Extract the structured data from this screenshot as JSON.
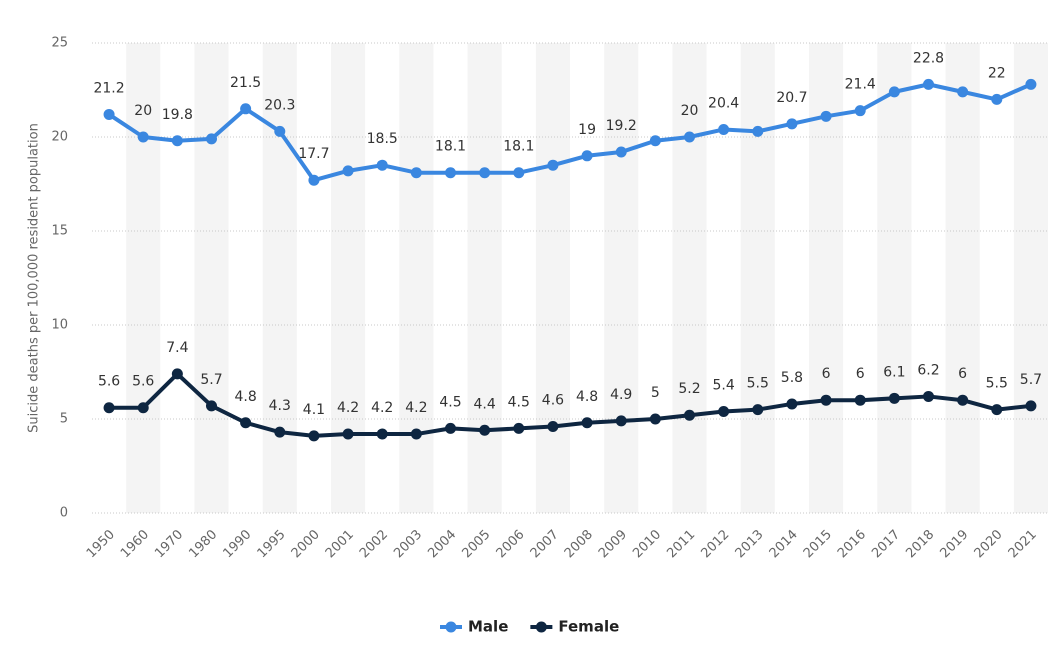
{
  "chart_data": {
    "type": "line",
    "y_label": "Suicide deaths per 100,000 resident population",
    "categories": [
      "1950",
      "1960",
      "1970",
      "1980",
      "1990",
      "1995",
      "2000",
      "2001",
      "2002",
      "2003",
      "2004",
      "2005",
      "2006",
      "2007",
      "2008",
      "2009",
      "2010",
      "2011",
      "2012",
      "2013",
      "2014",
      "2015",
      "2016",
      "2017",
      "2018",
      "2019",
      "2020",
      "2021"
    ],
    "series": [
      {
        "name": "Male",
        "color": "#3a87e0",
        "values": [
          21.2,
          20,
          19.8,
          19.9,
          21.5,
          20.3,
          17.7,
          18.2,
          18.5,
          18.1,
          18.1,
          18.1,
          18.1,
          18.5,
          19,
          19.2,
          19.8,
          20,
          20.4,
          20.3,
          20.7,
          21.1,
          21.4,
          22.4,
          22.8,
          22.4,
          22,
          22.8
        ],
        "value_labels": [
          "21.2",
          "20",
          "19.8",
          null,
          "21.5",
          "20.3",
          "17.7",
          null,
          "18.5",
          null,
          "18.1",
          null,
          "18.1",
          null,
          "19",
          "19.2",
          null,
          "20",
          "20.4",
          null,
          "20.7",
          null,
          "21.4",
          null,
          "22.8",
          null,
          "22",
          null
        ]
      },
      {
        "name": "Female",
        "color": "#0e2641",
        "values": [
          5.6,
          5.6,
          7.4,
          5.7,
          4.8,
          4.3,
          4.1,
          4.2,
          4.2,
          4.2,
          4.5,
          4.4,
          4.5,
          4.6,
          4.8,
          4.9,
          5,
          5.2,
          5.4,
          5.5,
          5.8,
          6,
          6,
          6.1,
          6.2,
          6,
          5.5,
          5.7
        ]
      }
    ],
    "ylim": [
      0,
      25
    ],
    "yticks": [
      0,
      5,
      10,
      15,
      20,
      25
    ],
    "grid": true,
    "legend": "bottom"
  }
}
